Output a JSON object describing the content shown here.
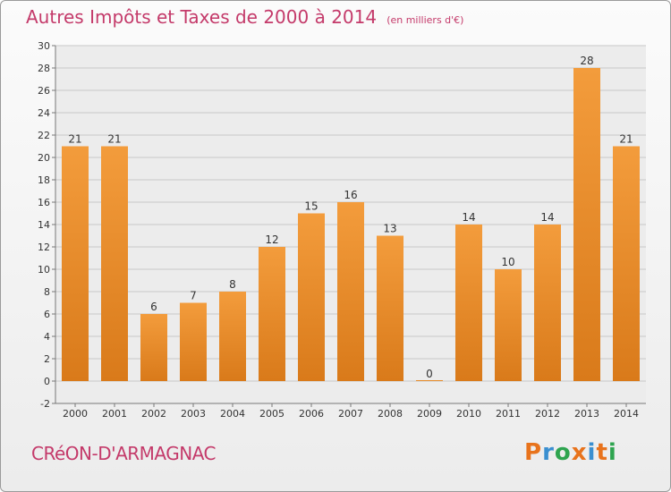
{
  "chart_data": {
    "type": "bar",
    "title": "Autres Impôts et Taxes de 2000 à 2014",
    "subtitle": "(en milliers d'€)",
    "xlabel": "",
    "ylabel": "",
    "categories": [
      "2000",
      "2001",
      "2002",
      "2003",
      "2004",
      "2005",
      "2006",
      "2007",
      "2008",
      "2009",
      "2010",
      "2011",
      "2012",
      "2013",
      "2014"
    ],
    "values": [
      21,
      21,
      6,
      7,
      8,
      12,
      15,
      16,
      13,
      0,
      14,
      10,
      14,
      28,
      21
    ],
    "ylim": [
      -2,
      30
    ],
    "yticks": [
      -2,
      0,
      2,
      4,
      6,
      8,
      10,
      12,
      14,
      16,
      18,
      20,
      22,
      24,
      26,
      28,
      30
    ],
    "grid": true,
    "bar_color": "#f39c3c",
    "bar_color_dark": "#d97a1a"
  },
  "footer": {
    "commune": "CRéON-D'ARMAGNAC",
    "brand": "Proxiti",
    "brand_colors": [
      "#e8731c",
      "#3a8fd0",
      "#2ea44f",
      "#e8731c",
      "#3a8fd0",
      "#e8731c",
      "#2ea44f"
    ]
  }
}
